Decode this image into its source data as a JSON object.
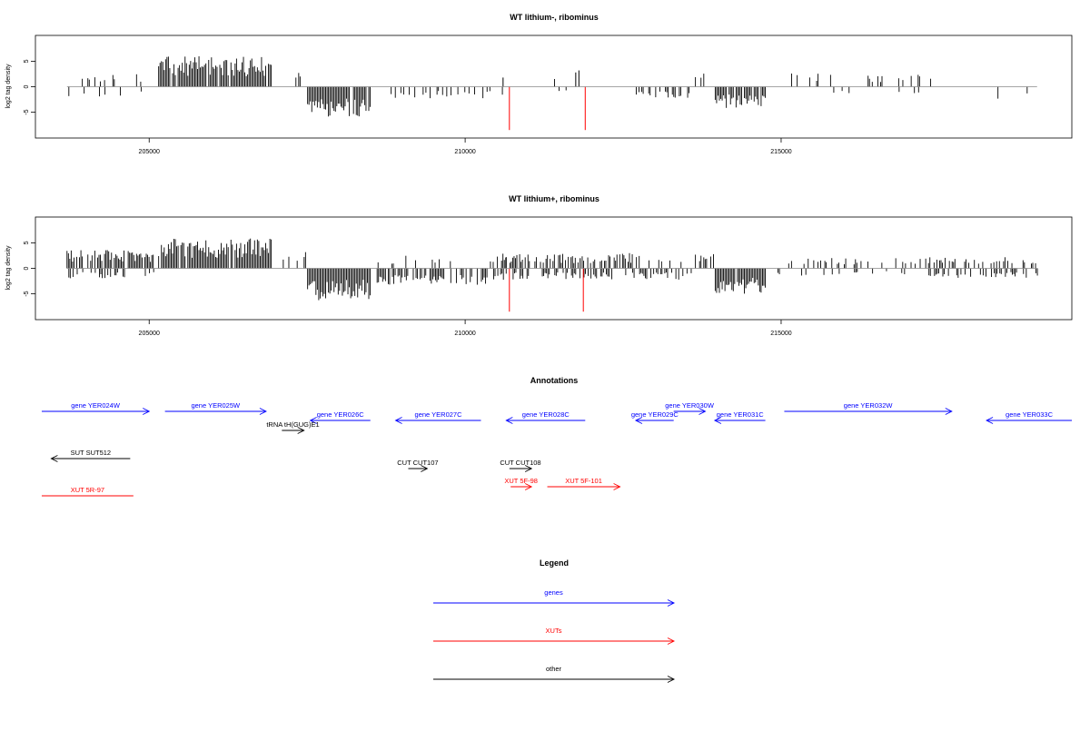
{
  "chart_data": [
    {
      "type": "bar",
      "title": "WT lithium-, ribominus",
      "ylabel": "log2 tag density",
      "xlabel": "",
      "xlim": [
        203200,
        219600
      ],
      "ylim": [
        -9,
        9
      ],
      "x_ticks": [
        205000,
        210000,
        215000
      ],
      "y_ticks": [
        -5,
        0,
        5
      ],
      "grid": false,
      "segments": [
        {
          "start": 203700,
          "end": 205100,
          "pos_prob": 0.16,
          "pos_mean": 2.2,
          "neg_prob": 0.08,
          "neg_mean": -1.8
        },
        {
          "start": 205150,
          "end": 206950,
          "pos_prob": 0.95,
          "pos_mean": 4.6,
          "neg_prob": 0.0,
          "neg_mean": 0
        },
        {
          "start": 207300,
          "end": 207500,
          "pos_prob": 0.25,
          "pos_mean": 3.0,
          "neg_prob": 0.0,
          "neg_mean": 0
        },
        {
          "start": 207500,
          "end": 208500,
          "pos_prob": 0.0,
          "pos_mean": 0,
          "neg_prob": 0.95,
          "neg_mean": -4.8
        },
        {
          "start": 208800,
          "end": 210600,
          "pos_prob": 0.03,
          "pos_mean": 1.0,
          "neg_prob": 0.3,
          "neg_mean": -1.8
        },
        {
          "start": 210600,
          "end": 212000,
          "pos_prob": 0.03,
          "pos_mean": 2.0,
          "neg_prob": 0.06,
          "neg_mean": -1.0
        },
        {
          "start": 212700,
          "end": 213600,
          "pos_prob": 0.03,
          "pos_mean": 1.2,
          "neg_prob": 0.35,
          "neg_mean": -1.8
        },
        {
          "start": 213600,
          "end": 213900,
          "pos_prob": 0.22,
          "pos_mean": 2.0,
          "neg_prob": 0.0,
          "neg_mean": 0
        },
        {
          "start": 213950,
          "end": 214750,
          "pos_prob": 0.0,
          "pos_mean": 0,
          "neg_prob": 0.9,
          "neg_mean": -3.4
        },
        {
          "start": 215100,
          "end": 217600,
          "pos_prob": 0.12,
          "pos_mean": 2.0,
          "neg_prob": 0.03,
          "neg_mean": -1.0
        },
        {
          "start": 218050,
          "end": 219050,
          "pos_prob": 0.0,
          "pos_mean": 0,
          "neg_prob": 0.06,
          "neg_mean": -2.0
        }
      ],
      "highlight_bars": [
        {
          "x": 210700,
          "value": -8.5
        },
        {
          "x": 211900,
          "value": -8.5
        },
        {
          "x": 211800,
          "value": 3.2
        },
        {
          "x": 211750,
          "value": 2.8
        },
        {
          "x": 210600,
          "value": 1.8
        }
      ],
      "highlight_color": "#ff0000",
      "bar_color": "#000000",
      "baseline_color": "#888888"
    },
    {
      "type": "bar",
      "title": "WT lithium+, ribominus",
      "ylabel": "log2 tag density",
      "xlabel": "",
      "xlim": [
        203200,
        219600
      ],
      "ylim": [
        -9,
        9
      ],
      "x_ticks": [
        205000,
        210000,
        215000
      ],
      "y_ticks": [
        -5,
        0,
        5
      ],
      "grid": false,
      "segments": [
        {
          "start": 203700,
          "end": 205100,
          "pos_prob": 0.8,
          "pos_mean": 2.8,
          "neg_prob": 0.4,
          "neg_mean": -1.6
        },
        {
          "start": 205150,
          "end": 206950,
          "pos_prob": 0.97,
          "pos_mean": 4.6,
          "neg_prob": 0.0,
          "neg_mean": 0
        },
        {
          "start": 207100,
          "end": 207500,
          "pos_prob": 0.4,
          "pos_mean": 2.8,
          "neg_prob": 0.0,
          "neg_mean": 0
        },
        {
          "start": 207500,
          "end": 208500,
          "pos_prob": 0.0,
          "pos_mean": 0,
          "neg_prob": 0.96,
          "neg_mean": -5.0
        },
        {
          "start": 208600,
          "end": 210350,
          "pos_prob": 0.1,
          "pos_mean": 2.0,
          "neg_prob": 0.65,
          "neg_mean": -2.6
        },
        {
          "start": 210400,
          "end": 212800,
          "pos_prob": 0.55,
          "pos_mean": 2.3,
          "neg_prob": 0.45,
          "neg_mean": -1.8
        },
        {
          "start": 212800,
          "end": 213600,
          "pos_prob": 0.15,
          "pos_mean": 1.4,
          "neg_prob": 0.6,
          "neg_mean": -1.8
        },
        {
          "start": 213600,
          "end": 213950,
          "pos_prob": 0.45,
          "pos_mean": 2.2,
          "neg_prob": 0.0,
          "neg_mean": 0
        },
        {
          "start": 213950,
          "end": 214750,
          "pos_prob": 0.0,
          "pos_mean": 0,
          "neg_prob": 0.95,
          "neg_mean": -4.0
        },
        {
          "start": 214900,
          "end": 217200,
          "pos_prob": 0.25,
          "pos_mean": 1.6,
          "neg_prob": 0.1,
          "neg_mean": -1.2
        },
        {
          "start": 217200,
          "end": 219050,
          "pos_prob": 0.45,
          "pos_mean": 1.8,
          "neg_prob": 0.35,
          "neg_mean": -1.6
        }
      ],
      "highlight_bars": [
        {
          "x": 210700,
          "value": -8.5
        },
        {
          "x": 211870,
          "value": -8.5
        },
        {
          "x": 210650,
          "value": 2.2
        },
        {
          "x": 211820,
          "value": 2.0
        }
      ],
      "highlight_color": "#ff0000",
      "bar_color": "#000000",
      "baseline_color": "#888888"
    },
    {
      "type": "annotation_track",
      "title": "Annotations",
      "xlim": [
        203200,
        219600
      ],
      "features": [
        {
          "label": "gene YER024W",
          "start": 203300,
          "end": 205000,
          "strand": "+",
          "row": 0,
          "color": "#0000ff"
        },
        {
          "label": "gene YER025W",
          "start": 205250,
          "end": 206850,
          "strand": "+",
          "row": 0,
          "color": "#0000ff"
        },
        {
          "label": "gene YER026C",
          "start": 207550,
          "end": 208500,
          "strand": "-",
          "row": 1,
          "color": "#0000ff"
        },
        {
          "label": "gene YER027C",
          "start": 208900,
          "end": 210250,
          "strand": "-",
          "row": 1,
          "color": "#0000ff"
        },
        {
          "label": "gene YER028C",
          "start": 210650,
          "end": 211900,
          "strand": "-",
          "row": 1,
          "color": "#0000ff"
        },
        {
          "label": "gene YER029C",
          "start": 212700,
          "end": 213300,
          "strand": "-",
          "row": 1,
          "color": "#0000ff"
        },
        {
          "label": "gene YER030W",
          "start": 213300,
          "end": 213800,
          "strand": "+",
          "row": 0,
          "color": "#0000ff"
        },
        {
          "label": "gene YER031C",
          "start": 213950,
          "end": 214750,
          "strand": "-",
          "row": 1,
          "color": "#0000ff"
        },
        {
          "label": "gene YER032W",
          "start": 215050,
          "end": 217700,
          "strand": "+",
          "row": 0,
          "color": "#0000ff"
        },
        {
          "label": "gene YER033C",
          "start": 218250,
          "end": 219600,
          "strand": "-",
          "row": 1,
          "color": "#0000ff"
        },
        {
          "label": "tRNA tH(GUG)E1",
          "start": 207100,
          "end": 207450,
          "strand": "+",
          "row": 2,
          "color": "#000000"
        },
        {
          "label": "SUT SUT512",
          "start": 203450,
          "end": 204700,
          "strand": "-",
          "row": 3,
          "color": "#000000"
        },
        {
          "label": "CUT CUT107",
          "start": 209100,
          "end": 209400,
          "strand": "+",
          "row": 4,
          "color": "#000000"
        },
        {
          "label": "CUT CUT108",
          "start": 210700,
          "end": 211050,
          "strand": "+",
          "row": 4,
          "color": "#000000"
        },
        {
          "label": "XUT 5F-98",
          "start": 210720,
          "end": 211050,
          "strand": "+",
          "row": 5,
          "color": "#ff0000"
        },
        {
          "label": "XUT 5F-101",
          "start": 211300,
          "end": 212450,
          "strand": "+",
          "row": 5,
          "color": "#ff0000"
        },
        {
          "label": "XUT 5R-97",
          "start": 203300,
          "end": 204750,
          "strand": "none",
          "row": 6,
          "color": "#ff0000"
        }
      ]
    },
    {
      "type": "legend",
      "title": "Legend",
      "entries": [
        {
          "label": "genes",
          "color": "#0000ff"
        },
        {
          "label": "XUTs",
          "color": "#ff0000"
        },
        {
          "label": "other",
          "color": "#000000"
        }
      ]
    }
  ]
}
